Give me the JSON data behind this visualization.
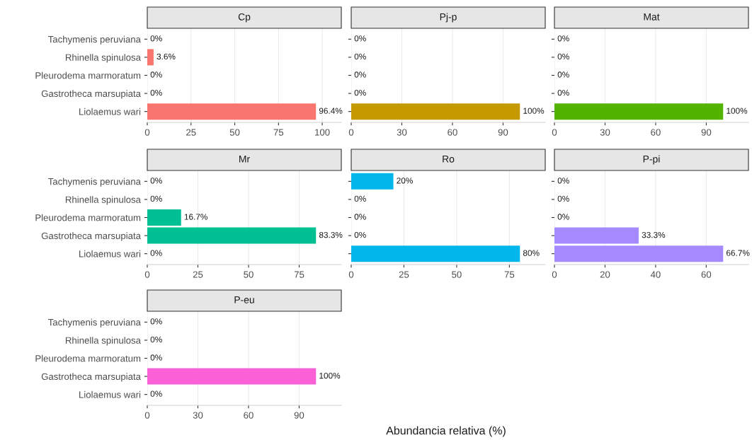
{
  "chart_data": [
    {
      "type": "bar",
      "orientation": "horizontal",
      "title": "Cp",
      "categories": [
        "Tachymenis peruviana",
        "Rhinella spinulosa",
        "Pleurodema marmoratum",
        "Gastrotheca marsupiata",
        "Liolaemus wari"
      ],
      "values": [
        0,
        3.6,
        0,
        0,
        96.4
      ],
      "value_labels": [
        "0%",
        "3.6%",
        "0%",
        "0%",
        "96.4%"
      ],
      "color": "#f8766d",
      "xlim": [
        0,
        110.9
      ],
      "xticks": [
        0,
        25,
        50,
        75,
        100
      ],
      "grid": "x"
    },
    {
      "type": "bar",
      "orientation": "horizontal",
      "title": "Pj-p",
      "categories": [
        null,
        null,
        null,
        null,
        null
      ],
      "values": [
        0,
        0,
        0,
        0,
        100
      ],
      "value_labels": [
        "0%",
        "0%",
        "0%",
        "0%",
        "100%"
      ],
      "color": "#c49a00",
      "xlim": [
        0,
        115
      ],
      "xticks": [
        0,
        30,
        60,
        90
      ],
      "grid": "x",
      "tick_labels": "x"
    },
    {
      "type": "bar",
      "orientation": "horizontal",
      "title": "Mat",
      "categories": [
        null,
        null,
        null,
        null,
        null
      ],
      "values": [
        0,
        0,
        0,
        0,
        100
      ],
      "value_labels": [
        "0%",
        "0%",
        "0%",
        "0%",
        "100%"
      ],
      "color": "#53b400",
      "xlim": [
        0,
        115
      ],
      "xticks": [
        0,
        30,
        60,
        90
      ],
      "grid": "x",
      "tick_labels": "x"
    },
    {
      "type": "bar",
      "orientation": "horizontal",
      "title": "Mr",
      "categories": [
        "Tachymenis peruviana",
        "Rhinella spinulosa",
        "Pleurodema marmoratum",
        "Gastrotheca marsupiata",
        "Liolaemus wari"
      ],
      "values": [
        0,
        0,
        16.7,
        83.3,
        0
      ],
      "value_labels": [
        "0%",
        "0%",
        "16.7%",
        "83.3%",
        "0%"
      ],
      "color": "#00c094",
      "xlim": [
        0,
        95.8
      ],
      "xticks": [
        0,
        25,
        50,
        75
      ],
      "grid": "x"
    },
    {
      "type": "bar",
      "orientation": "horizontal",
      "title": "Ro",
      "categories": [
        null,
        null,
        null,
        null,
        null
      ],
      "values": [
        20,
        0,
        0,
        0,
        80
      ],
      "value_labels": [
        "20%",
        "0%",
        "0%",
        "0%",
        "80%"
      ],
      "color": "#00b6eb",
      "xlim": [
        0,
        92
      ],
      "xticks": [
        0,
        25,
        50,
        75
      ],
      "grid": "x",
      "tick_labels": "x"
    },
    {
      "type": "bar",
      "orientation": "horizontal",
      "title": "P-pi",
      "categories": [
        null,
        null,
        null,
        null,
        null
      ],
      "values": [
        0,
        0,
        0,
        33.3,
        66.7
      ],
      "value_labels": [
        "0%",
        "0%",
        "0%",
        "33.3%",
        "66.7%"
      ],
      "color": "#a58aff",
      "xlim": [
        0,
        76.7
      ],
      "xticks": [
        0,
        20,
        40,
        60
      ],
      "grid": "x",
      "tick_labels": "x"
    },
    {
      "type": "bar",
      "orientation": "horizontal",
      "title": "P-eu",
      "xlabel": "Abundancia relativa (%)",
      "categories": [
        "Tachymenis peruviana",
        "Rhinella spinulosa",
        "Pleurodema marmoratum",
        "Gastrotheca marsupiata",
        "Liolaemus wari"
      ],
      "values": [
        0,
        0,
        0,
        100,
        0
      ],
      "value_labels": [
        "0%",
        "0%",
        "0%",
        "100%",
        "0%"
      ],
      "color": "#fb61d7",
      "xlim": [
        0,
        115
      ],
      "xticks": [
        0,
        30,
        60,
        90
      ],
      "grid": "x"
    }
  ]
}
